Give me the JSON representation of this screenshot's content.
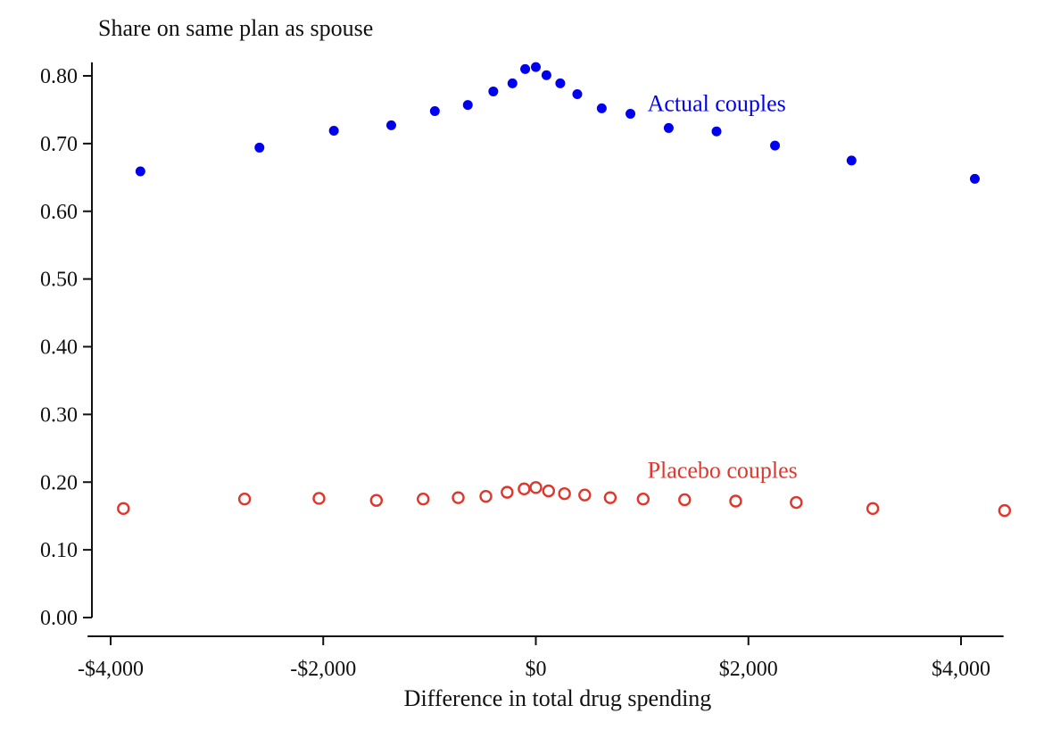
{
  "chart_data": {
    "type": "scatter",
    "title": "",
    "ylabel": "Share on same plan as spouse",
    "xlabel": "Difference in total drug spending",
    "xlim": [
      -4200,
      4400
    ],
    "ylim": [
      0.0,
      0.82
    ],
    "x_ticks": [
      -4000,
      -2000,
      0,
      2000,
      4000
    ],
    "x_tick_labels": [
      "-$4,000",
      "-$2,000",
      "$0",
      "$2,000",
      "$4,000"
    ],
    "y_ticks": [
      0.0,
      0.1,
      0.2,
      0.3,
      0.4,
      0.5,
      0.6,
      0.7,
      0.8
    ],
    "y_tick_labels": [
      "0.00",
      "0.10",
      "0.20",
      "0.30",
      "0.40",
      "0.50",
      "0.60",
      "0.70",
      "0.80"
    ],
    "grid": false,
    "series": [
      {
        "name": "Actual couples",
        "color": "#0000ee",
        "marker": "filled-circle",
        "label_at": [
          1050,
          0.76
        ],
        "x": [
          -3720,
          -2600,
          -1900,
          -1360,
          -950,
          -640,
          -400,
          -220,
          -100,
          0,
          100,
          230,
          390,
          620,
          890,
          1250,
          1700,
          2250,
          2970,
          4130
        ],
        "y": [
          0.659,
          0.694,
          0.719,
          0.727,
          0.748,
          0.757,
          0.777,
          0.789,
          0.81,
          0.813,
          0.801,
          0.789,
          0.773,
          0.752,
          0.744,
          0.723,
          0.718,
          0.697,
          0.675,
          0.648
        ]
      },
      {
        "name": "Placebo couples",
        "color": "#e0362b",
        "marker": "hollow-circle",
        "label_at": [
          1050,
          0.218
        ],
        "x": [
          -3880,
          -2740,
          -2040,
          -1500,
          -1060,
          -730,
          -470,
          -270,
          -110,
          0,
          120,
          270,
          460,
          700,
          1010,
          1400,
          1880,
          2450,
          3170,
          4410
        ],
        "y": [
          0.161,
          0.175,
          0.176,
          0.173,
          0.175,
          0.177,
          0.179,
          0.185,
          0.19,
          0.192,
          0.187,
          0.183,
          0.181,
          0.177,
          0.175,
          0.174,
          0.172,
          0.17,
          0.161,
          0.158
        ]
      }
    ]
  }
}
